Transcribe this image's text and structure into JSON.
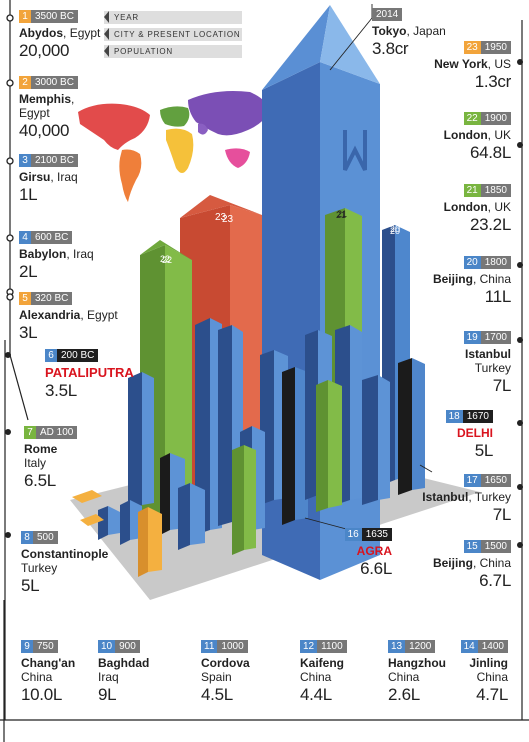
{
  "legend": [
    "YEAR",
    "CITY & PRESENT LOCATION",
    "POPULATION"
  ],
  "colors": {
    "orange": "#f2a43b",
    "blue": "#4b86c8",
    "green": "#79b540",
    "red": "#e05d41",
    "dark": "#333333"
  },
  "entries": [
    {
      "id": "1",
      "year": "3500 BC",
      "city": "Abydos",
      "location": "Egypt",
      "population": "20,000"
    },
    {
      "id": "2",
      "year": "3000 BC",
      "city": "Memphis",
      "location": "Egypt",
      "population": "40,000"
    },
    {
      "id": "3",
      "year": "2100 BC",
      "city": "Girsu",
      "location": "Iraq",
      "population": "1L"
    },
    {
      "id": "4",
      "year": "600 BC",
      "city": "Babylon",
      "location": "Iraq",
      "population": "2L"
    },
    {
      "id": "5",
      "year": "320 BC",
      "city": "Alexandria",
      "location": "Egypt",
      "population": "3L"
    },
    {
      "id": "6",
      "year": "200 BC",
      "city": "PATALIPUTRA",
      "location": "",
      "population": "3.5L"
    },
    {
      "id": "7",
      "year": "AD 100",
      "city": "Rome",
      "location": "Italy",
      "population": "6.5L"
    },
    {
      "id": "8",
      "year": "500",
      "city": "Constantinople",
      "location": "Turkey",
      "population": "5L"
    },
    {
      "id": "9",
      "year": "750",
      "city": "Chang'an",
      "location": "China",
      "population": "10.0L"
    },
    {
      "id": "10",
      "year": "900",
      "city": "Baghdad",
      "location": "Iraq",
      "population": "9L"
    },
    {
      "id": "11",
      "year": "1000",
      "city": "Cordova",
      "location": "Spain",
      "population": "4.5L"
    },
    {
      "id": "12",
      "year": "1100",
      "city": "Kaifeng",
      "location": "China",
      "population": "4.4L"
    },
    {
      "id": "13",
      "year": "1200",
      "city": "Hangzhou",
      "location": "China",
      "population": "2.6L"
    },
    {
      "id": "14",
      "year": "1400",
      "city": "Jinling",
      "location": "China",
      "population": "4.7L"
    },
    {
      "id": "15",
      "year": "1500",
      "city": "Beijing",
      "location": "China",
      "population": "6.7L"
    },
    {
      "id": "16",
      "year": "1635",
      "city": "AGRA",
      "location": "",
      "population": "6.6L"
    },
    {
      "id": "17",
      "year": "1650",
      "city": "Istanbul",
      "location": "Turkey",
      "population": "7L"
    },
    {
      "id": "18",
      "year": "1670",
      "city": "DELHI",
      "location": "",
      "population": "5L"
    },
    {
      "id": "19",
      "year": "1700",
      "city": "Istanbul",
      "location": "Turkey",
      "population": "7L"
    },
    {
      "id": "20",
      "year": "1800",
      "city": "Beijing",
      "location": "China",
      "population": "11L"
    },
    {
      "id": "21",
      "year": "1850",
      "city": "London",
      "location": "UK",
      "population": "23.2L"
    },
    {
      "id": "22",
      "year": "1900",
      "city": "London",
      "location": "UK",
      "population": "64.8L"
    },
    {
      "id": "23",
      "year": "1950",
      "city": "New York",
      "location": "US",
      "population": "1.3cr"
    },
    {
      "id": "",
      "year": "2014",
      "city": "Tokyo",
      "location": "Japan",
      "population": "3.8cr"
    }
  ],
  "buildings": [
    {
      "id": "23",
      "letter": "23",
      "color": "red"
    },
    {
      "id": "22",
      "letter": "22",
      "color": "green"
    },
    {
      "id": "21",
      "letter": "21",
      "color": "green"
    },
    {
      "id": "20",
      "letter": "20",
      "color": "blue"
    }
  ]
}
